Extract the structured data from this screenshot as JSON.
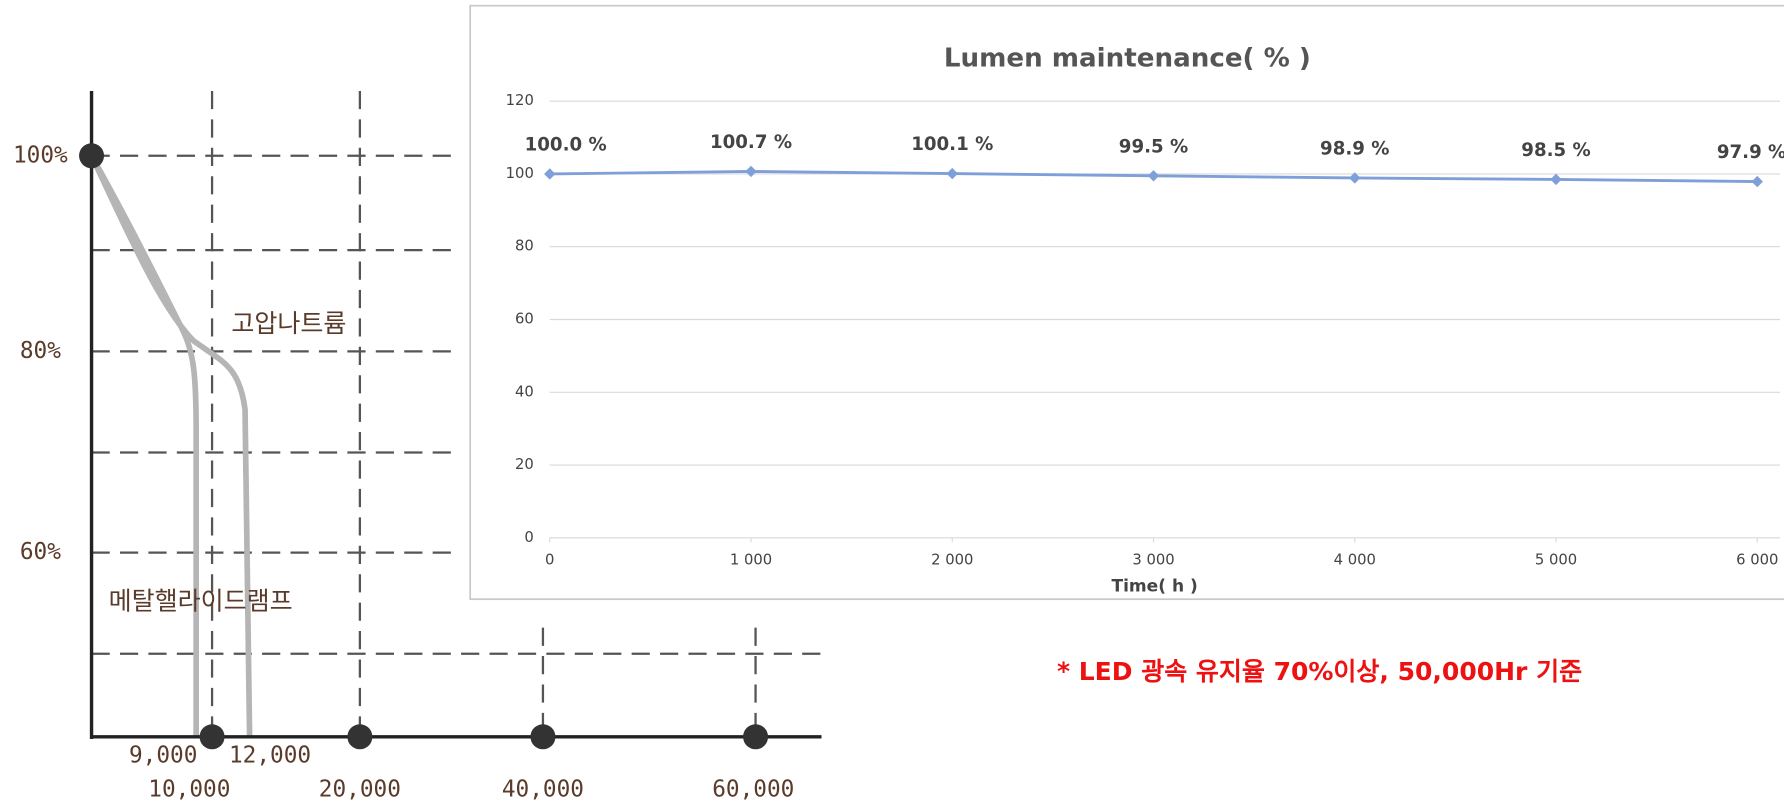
{
  "chart_data": {
    "type": "line",
    "title": "Lumen maintenance( % )",
    "xlabel": "Time( h )",
    "x": [
      0,
      1000,
      2000,
      3000,
      4000,
      5000,
      6000
    ],
    "series": [
      {
        "name": "Lumen maintenance",
        "color": "#7f9fd9",
        "values": [
          100.0,
          100.7,
          100.1,
          99.5,
          98.9,
          98.5,
          97.9
        ],
        "value_labels": [
          "100.0 %",
          "100.7 %",
          "100.1 %",
          "99.5 %",
          "98.9 %",
          "98.5 %",
          "97.9 %"
        ]
      }
    ],
    "xlim": [
      0,
      6000
    ],
    "xticks": [
      0,
      {
        "value": 1000,
        "label": "1 000"
      },
      {
        "value": 2000,
        "label": "2 000"
      },
      {
        "value": 3000,
        "label": "3 000"
      },
      {
        "value": 4000,
        "label": "4 000"
      },
      {
        "value": 5000,
        "label": "5 000"
      },
      {
        "value": 6000,
        "label": "6 000"
      }
    ],
    "ylim": [
      0,
      120
    ],
    "yticks": [
      0,
      20,
      40,
      60,
      80,
      100,
      120
    ],
    "grid": true
  },
  "background_chart": {
    "y_labels": [
      "100%",
      "80%",
      "60%"
    ],
    "x_labels": [
      "9,000",
      "12,000",
      "10,000",
      "20,000",
      "40,000",
      "60,000"
    ],
    "lamp_labels": [
      "고압나트륨",
      "메탈핼라이드램프"
    ]
  },
  "note": "* LED 광속 유지율 70%이상, 50,000Hr 기준"
}
